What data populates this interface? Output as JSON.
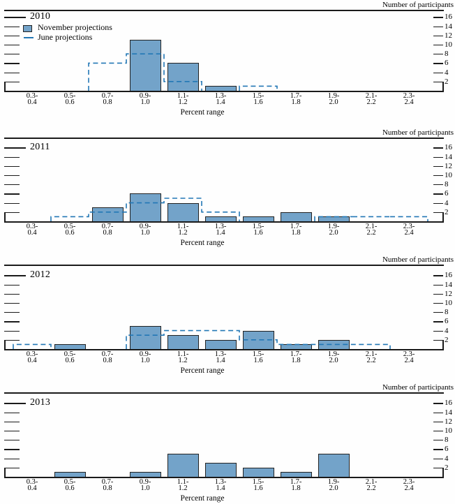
{
  "figure": {
    "y_axis_title": "Number of participants",
    "x_axis_title": "Percent range",
    "legend": {
      "november_label": "November projections",
      "june_label": "June projections"
    }
  },
  "chart_data": {
    "type": "bar",
    "subtype": "histogram-panel-grid",
    "categories": [
      "0.3-0.4",
      "0.5-0.6",
      "0.7-0.8",
      "0.9-1.0",
      "1.1-1.2",
      "1.3-1.4",
      "1.5-1.6",
      "1.7-1.8",
      "1.9-2.0",
      "2.1-2.2",
      "2.3-2.4"
    ],
    "category_label_lines": [
      [
        "0.3-",
        "0.4"
      ],
      [
        "0.5-",
        "0.6"
      ],
      [
        "0.7-",
        "0.8"
      ],
      [
        "0.9-",
        "1.0"
      ],
      [
        "1.1-",
        "1.2"
      ],
      [
        "1.3-",
        "1.4"
      ],
      [
        "1.5-",
        "1.6"
      ],
      [
        "1.7-",
        "1.8"
      ],
      [
        "1.9-",
        "2.0"
      ],
      [
        "2.1-",
        "2.2"
      ],
      [
        "2.3-",
        "2.4"
      ]
    ],
    "xlabel": "Percent range",
    "ylabel": "Number of participants",
    "ylim": [
      0,
      16
    ],
    "yticks": [
      2,
      4,
      6,
      8,
      10,
      12,
      14,
      16
    ],
    "grid": false,
    "legend_position": "top-left-first-panel",
    "series_names": [
      "November projections",
      "June projections"
    ],
    "panels": [
      {
        "year": "2010",
        "november": [
          0,
          0,
          0,
          11,
          6,
          1,
          0,
          0,
          0,
          0,
          0
        ],
        "june": [
          0,
          0,
          6,
          8,
          2,
          0,
          1,
          0,
          0,
          0,
          0
        ]
      },
      {
        "year": "2011",
        "november": [
          0,
          0,
          3,
          6,
          4,
          1,
          1,
          2,
          1,
          0,
          0
        ],
        "june": [
          0,
          1,
          2,
          4,
          5,
          2,
          0,
          0,
          1,
          1,
          1
        ]
      },
      {
        "year": "2012",
        "november": [
          0,
          1,
          0,
          5,
          3,
          2,
          4,
          1,
          2,
          0,
          0
        ],
        "june": [
          1,
          0,
          0,
          3,
          4,
          4,
          2,
          1,
          1,
          1,
          0
        ]
      },
      {
        "year": "2013",
        "november": [
          0,
          1,
          0,
          1,
          5,
          3,
          2,
          1,
          5,
          0,
          0
        ],
        "june": null
      }
    ],
    "colors": {
      "bar_fill": "#73a3c9",
      "bar_edge": "#222222",
      "june_line": "#2277b5",
      "axis": "#1a1a1a"
    }
  }
}
